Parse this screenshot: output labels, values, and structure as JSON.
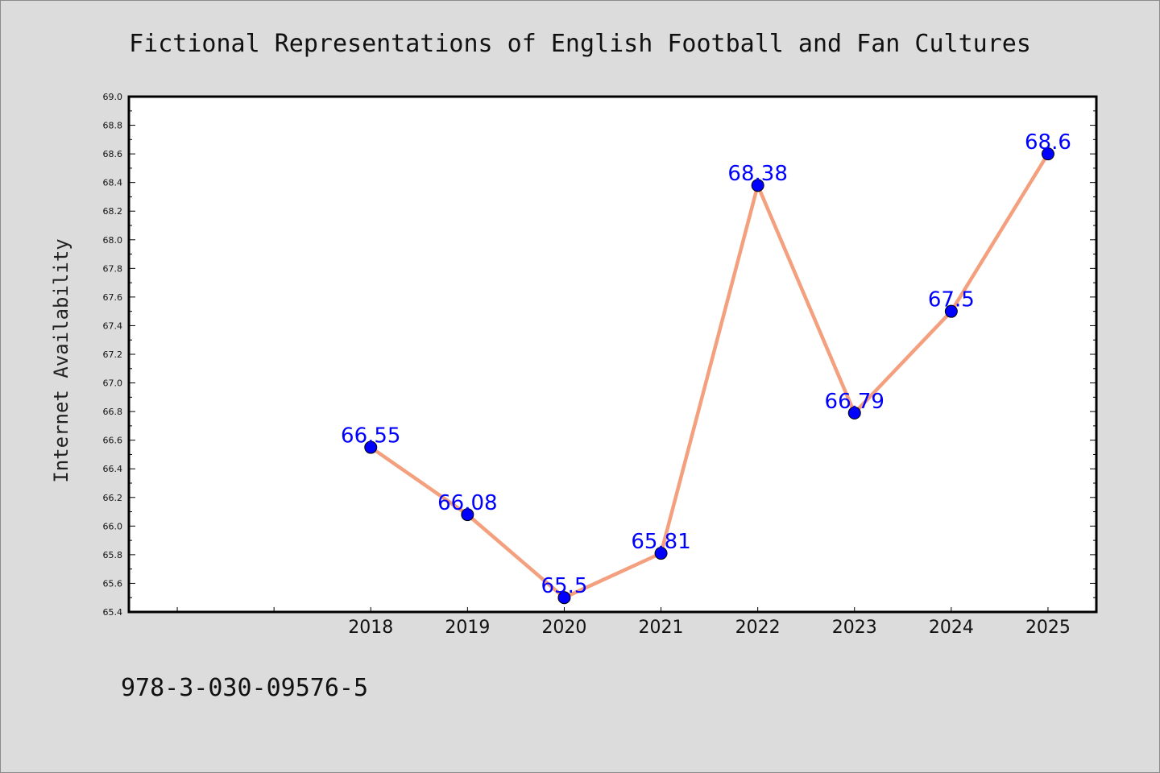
{
  "chart_data": {
    "type": "line",
    "title": "Fictional Representations of English Football and Fan Cultures",
    "xlabel": "",
    "ylabel": "Internet Availability",
    "x": [
      "2018",
      "2019",
      "2020",
      "2021",
      "2022",
      "2023",
      "2024",
      "2025"
    ],
    "values": [
      66.55,
      66.08,
      65.5,
      65.81,
      68.38,
      66.79,
      67.5,
      68.6
    ],
    "data_labels": [
      "66.55",
      "66.08",
      "65.5",
      "65.81",
      "68.38",
      "66.79",
      "67.5",
      "68.6"
    ],
    "ylim": [
      65.4,
      69.0
    ],
    "y_ticks": [
      "65.4",
      "65.6",
      "65.8",
      "66.0",
      "66.2",
      "66.4",
      "66.6",
      "66.8",
      "67.0",
      "67.2",
      "67.4",
      "67.6",
      "67.8",
      "68.0",
      "68.2",
      "68.4",
      "68.6",
      "68.8",
      "69.0"
    ],
    "grid": false,
    "line_color": "#f4a07e",
    "marker_color": "#0000ff",
    "label_color": "#0000ff"
  },
  "footer": {
    "isbn": "978-3-030-09576-5"
  }
}
